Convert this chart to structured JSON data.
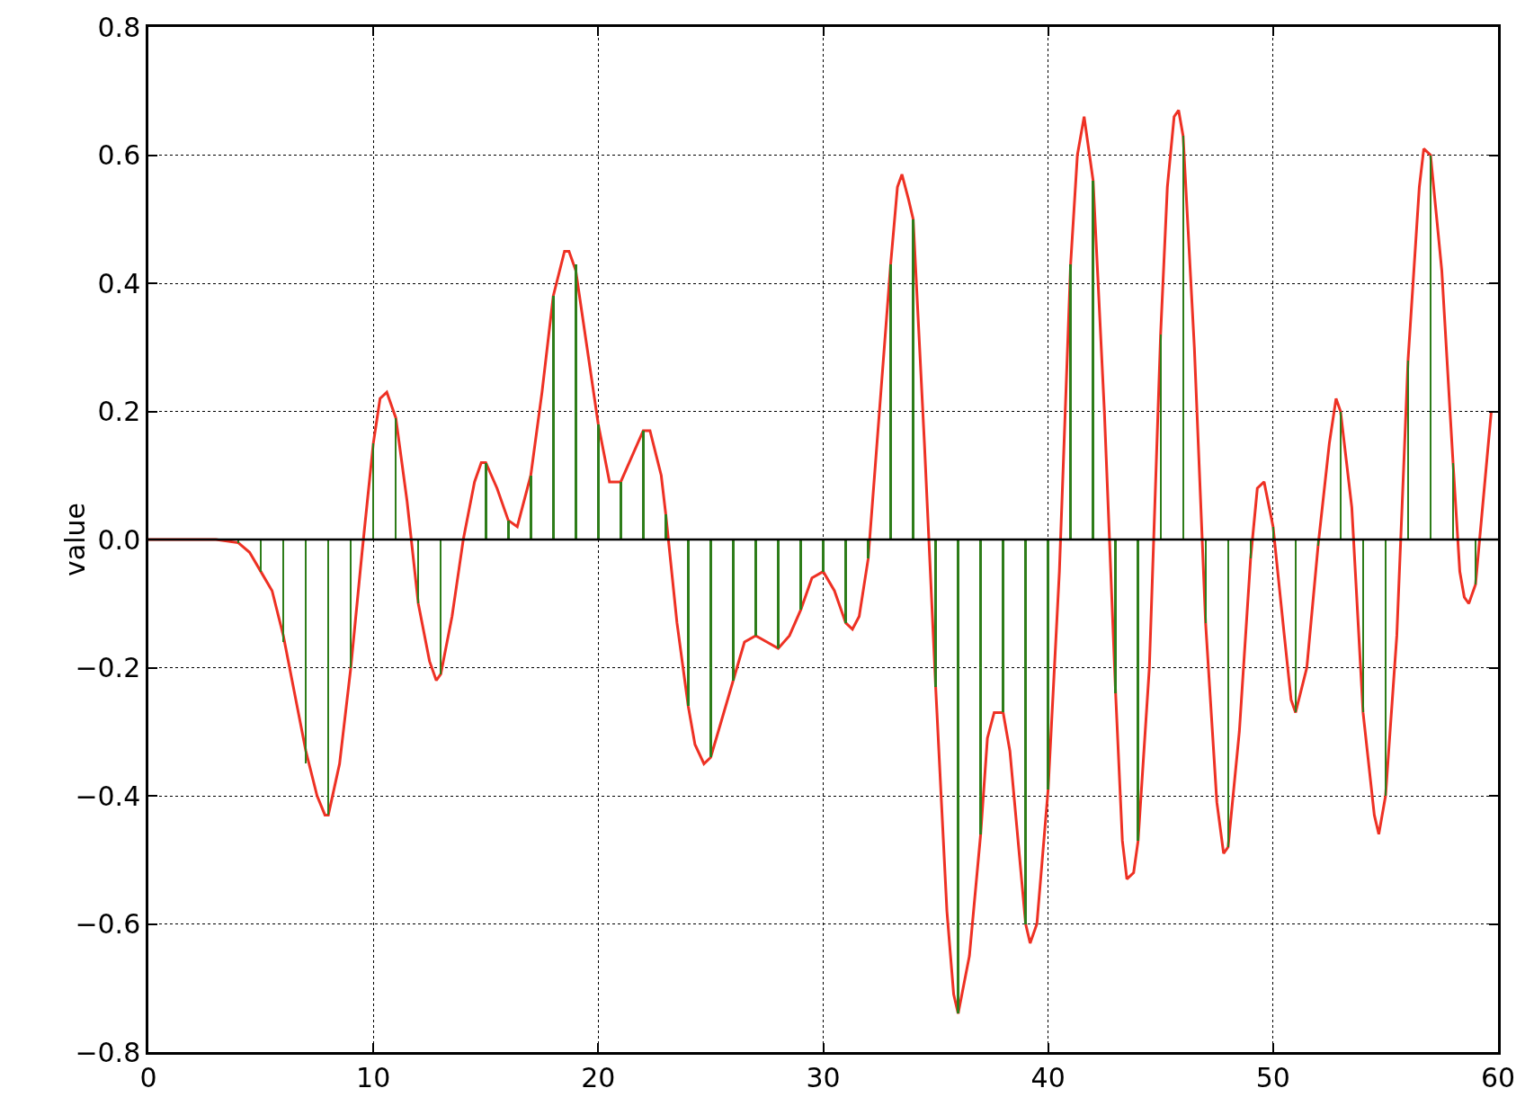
{
  "chart_data": {
    "type": "line",
    "ylabel": "value",
    "xlim": [
      0,
      60
    ],
    "xticks": [
      0,
      10,
      20,
      30,
      40,
      50,
      60
    ],
    "ylim": [
      -0.8,
      0.8
    ],
    "yticks": [
      {
        "value": -0.8,
        "label": "−0.8"
      },
      {
        "value": -0.6,
        "label": "−0.6"
      },
      {
        "value": -0.4,
        "label": "−0.4"
      },
      {
        "value": -0.2,
        "label": "−0.2"
      },
      {
        "value": 0,
        "label": "0.0"
      },
      0.2,
      0.4,
      0.6,
      0.8
    ],
    "grid": true,
    "marker": "none",
    "line_style": "solid",
    "ref_lines": [
      {
        "axis": "y",
        "value": 0,
        "color": "#000000"
      }
    ],
    "series": [
      {
        "type": "bar",
        "color": "#2e7d1a",
        "x": [
          0,
          1,
          2,
          3,
          4,
          5,
          6,
          7,
          8,
          9,
          10,
          11,
          12,
          13,
          14,
          15,
          16,
          17,
          18,
          19,
          20,
          21,
          22,
          23,
          24,
          25,
          26,
          27,
          28,
          29,
          30,
          31,
          32,
          33,
          34,
          35,
          36,
          37,
          38,
          39,
          40,
          41,
          42,
          43,
          44,
          45,
          46,
          47,
          48,
          49,
          50,
          51,
          52,
          53,
          54,
          55,
          56,
          57,
          58,
          59
        ],
        "values": [
          0,
          0,
          0,
          0,
          -0.005,
          -0.05,
          -0.16,
          -0.35,
          -0.43,
          -0.2,
          0.15,
          0.19,
          -0.1,
          -0.21,
          0,
          0.12,
          0.03,
          0.1,
          0.38,
          0.43,
          0.18,
          0.09,
          0.17,
          0.04,
          -0.26,
          -0.34,
          -0.22,
          -0.15,
          -0.17,
          -0.11,
          -0.05,
          -0.13,
          -0.03,
          0.43,
          0.5,
          -0.23,
          -0.74,
          -0.46,
          -0.27,
          -0.6,
          -0.39,
          0.43,
          0.56,
          -0.24,
          -0.47,
          0.32,
          0.63,
          -0.13,
          -0.48,
          -0.03,
          0.02,
          -0.27,
          -0.01,
          0.2,
          -0.27,
          -0.4,
          0.28,
          0.6,
          0.12,
          -0.07
        ]
      },
      {
        "color": "#ee3124",
        "x": [
          0,
          3,
          4,
          4.5,
          5,
          5.5,
          6,
          7,
          7.5,
          7.85,
          8,
          8.5,
          9,
          9.5,
          10,
          10.3,
          10.6,
          11,
          11.5,
          12,
          12.5,
          12.8,
          13,
          13.5,
          14,
          14.5,
          14.8,
          15,
          15.5,
          16,
          16.4,
          17,
          17.5,
          18,
          18.5,
          18.7,
          19,
          19.5,
          20,
          20.5,
          21,
          21.5,
          22,
          22.3,
          22.8,
          23,
          23.5,
          24,
          24.3,
          24.7,
          25,
          25.5,
          26,
          26.5,
          27,
          27.5,
          28,
          28.5,
          29,
          29.5,
          30,
          30.5,
          31,
          31.3,
          31.6,
          32,
          32.5,
          33,
          33.3,
          33.5,
          33.8,
          34,
          34.5,
          35,
          35.5,
          35.8,
          36,
          36.5,
          37,
          37.3,
          37.6,
          38,
          38.3,
          39,
          39.2,
          39.5,
          40,
          40.5,
          41,
          41.3,
          41.6,
          42,
          42.5,
          43,
          43.3,
          43.5,
          43.8,
          44,
          44.5,
          45,
          45.3,
          45.6,
          45.8,
          46,
          46.5,
          47,
          47.5,
          47.8,
          48,
          48.5,
          49,
          49.3,
          49.6,
          50,
          50.5,
          50.8,
          51,
          51.5,
          52,
          52.5,
          52.8,
          53,
          53.5,
          54,
          54.5,
          54.7,
          55,
          55.5,
          56,
          56.5,
          56.7,
          57,
          57.5,
          58,
          58.3,
          58.5,
          58.7,
          59,
          59.7
        ],
        "values": [
          0,
          0,
          -0.005,
          -0.02,
          -0.05,
          -0.08,
          -0.15,
          -0.33,
          -0.4,
          -0.43,
          -0.43,
          -0.35,
          -0.2,
          -0.02,
          0.15,
          0.22,
          0.23,
          0.19,
          0.06,
          -0.1,
          -0.19,
          -0.22,
          -0.21,
          -0.12,
          0,
          0.09,
          0.12,
          0.12,
          0.08,
          0.03,
          0.02,
          0.1,
          0.23,
          0.38,
          0.45,
          0.45,
          0.42,
          0.3,
          0.18,
          0.09,
          0.09,
          0.13,
          0.17,
          0.17,
          0.1,
          0.04,
          -0.13,
          -0.26,
          -0.32,
          -0.35,
          -0.34,
          -0.28,
          -0.22,
          -0.16,
          -0.15,
          -0.16,
          -0.17,
          -0.15,
          -0.11,
          -0.06,
          -0.05,
          -0.08,
          -0.13,
          -0.14,
          -0.12,
          -0.03,
          0.2,
          0.43,
          0.55,
          0.57,
          0.53,
          0.5,
          0.15,
          -0.23,
          -0.58,
          -0.71,
          -0.74,
          -0.65,
          -0.46,
          -0.31,
          -0.27,
          -0.27,
          -0.33,
          -0.6,
          -0.63,
          -0.6,
          -0.39,
          -0.05,
          0.43,
          0.6,
          0.66,
          0.56,
          0.2,
          -0.24,
          -0.47,
          -0.53,
          -0.52,
          -0.47,
          -0.2,
          0.32,
          0.55,
          0.66,
          0.67,
          0.63,
          0.3,
          -0.13,
          -0.41,
          -0.49,
          -0.48,
          -0.3,
          -0.03,
          0.08,
          0.09,
          0.02,
          -0.15,
          -0.25,
          -0.27,
          -0.2,
          -0.01,
          0.15,
          0.22,
          0.2,
          0.05,
          -0.27,
          -0.43,
          -0.46,
          -0.4,
          -0.15,
          0.28,
          0.55,
          0.61,
          0.6,
          0.42,
          0.12,
          -0.05,
          -0.09,
          -0.1,
          -0.07,
          0.2
        ]
      }
    ]
  }
}
